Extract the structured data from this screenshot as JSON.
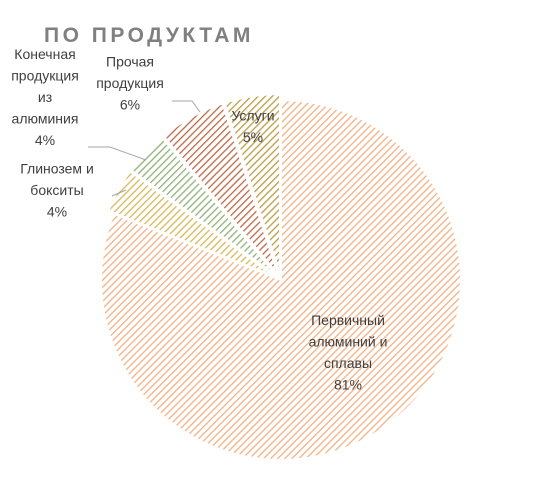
{
  "chart_data": {
    "type": "pie",
    "title": "ПО ПРОДУКТАМ",
    "slices": [
      {
        "label_lines": [
          "Первичный",
          "алюминий и",
          "сплавы"
        ],
        "value": 81,
        "value_label": "81%",
        "color": "#f4b183"
      },
      {
        "label_lines": [
          "Глинозем и",
          "бокситы"
        ],
        "value": 4,
        "value_label": "4%",
        "color": "#ffd966"
      },
      {
        "label_lines": [
          "Конечная",
          "продукция",
          "из",
          "алюминия"
        ],
        "value": 4,
        "value_label": "4%",
        "color": "#a9d18e"
      },
      {
        "label_lines": [
          "Прочая",
          "продукция"
        ],
        "value": 6,
        "value_label": "6%",
        "color": "#e07b54"
      },
      {
        "label_lines": [
          "Услуги"
        ],
        "value": 5,
        "value_label": "5%",
        "color": "#ddb94f"
      }
    ],
    "legend": "none"
  }
}
